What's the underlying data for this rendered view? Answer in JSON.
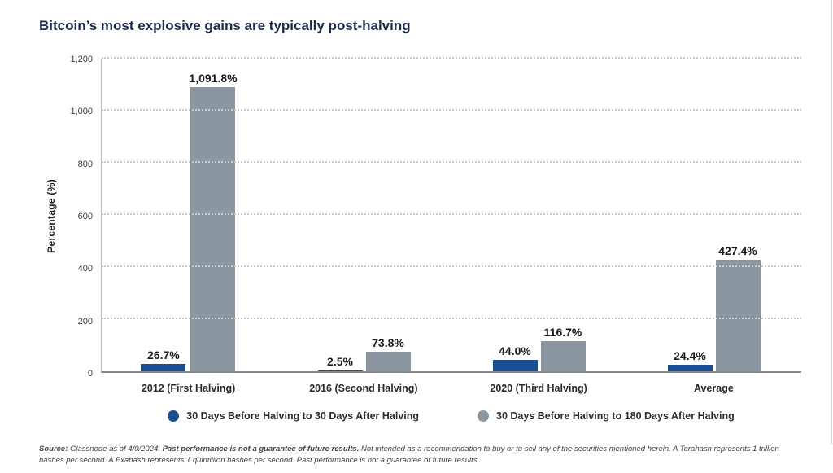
{
  "chart_data": {
    "type": "bar",
    "title": "Bitcoin’s most explosive gains are typically post-halving",
    "xlabel": "",
    "ylabel": "Percentage (%)",
    "ylim": [
      0,
      1200
    ],
    "grid": "dotted-horizontal",
    "legend_position": "bottom",
    "categories": [
      "2012 (First Halving)",
      "2016 (Second Halving)",
      "2020 (Third Halving)",
      "Average"
    ],
    "yticks": [
      {
        "value": 0,
        "label": "0"
      },
      {
        "value": 200,
        "label": "200"
      },
      {
        "value": 400,
        "label": "400"
      },
      {
        "value": 600,
        "label": "600"
      },
      {
        "value": 800,
        "label": "800"
      },
      {
        "value": 1000,
        "label": "1,000"
      },
      {
        "value": 1200,
        "label": "1,200"
      }
    ],
    "series": [
      {
        "key": "gain-30d-after",
        "name": "30 Days Before Halving to 30 Days After Halving",
        "color": "#1a4e8f",
        "values": [
          26.7,
          2.5,
          44.0,
          24.4
        ],
        "labels": [
          "26.7%",
          "2.5%",
          "44.0%",
          "24.4%"
        ]
      },
      {
        "key": "gain-180d-after",
        "name": "30 Days Before Halving to 180 Days After Halving",
        "color": "#8c96a0",
        "values": [
          1091.8,
          73.8,
          116.7,
          427.4
        ],
        "labels": [
          "1,091.8%",
          "73.8%",
          "116.7%",
          "427.4%"
        ]
      }
    ]
  },
  "footer": {
    "source_label": "Source:",
    "text_a": " Glassnode as of 4/0/2024. ",
    "bold_b": "Past performance is not a guarantee of future results.",
    "text_c": " Not intended as a recommendation to buy or to sell any of the securities mentioned herein. A Terahash represents 1 trillion hashes per second. A Exahash represents 1 quintillion hashes per second. Past performance is not a guarantee of future results."
  }
}
